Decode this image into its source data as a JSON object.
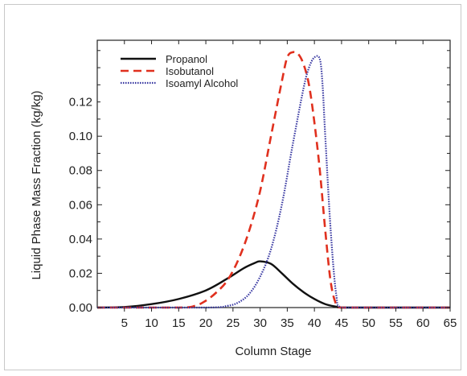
{
  "chart_data": {
    "type": "line",
    "xlabel": "Column Stage",
    "ylabel": "Liquid Phase Mass Fraction (kg/kg)",
    "xlim": [
      0,
      65
    ],
    "ylim": [
      0,
      0.156
    ],
    "xticks": [
      5,
      10,
      15,
      20,
      25,
      30,
      35,
      40,
      45,
      50,
      55,
      60,
      65
    ],
    "xtick_labels": [
      "5",
      "10",
      "15",
      "20",
      "25",
      "30",
      "35",
      "40",
      "45",
      "50",
      "55",
      "60",
      "65"
    ],
    "yticks": [
      0.0,
      0.02,
      0.04,
      0.06,
      0.08,
      0.1,
      0.12
    ],
    "ytick_labels": [
      "0.00",
      "0.02",
      "0.04",
      "0.06",
      "0.08",
      "0.10",
      "0.12"
    ],
    "legend_position": "top-left",
    "grid": false,
    "series": [
      {
        "name": "Propanol",
        "color": "#111111",
        "style": "solid",
        "x": [
          0,
          5,
          10,
          15,
          20,
          24,
          27,
          29,
          30,
          32,
          34,
          36,
          38,
          40,
          42,
          44,
          45,
          50,
          55,
          60,
          65
        ],
        "y": [
          0.0,
          0.0003,
          0.002,
          0.005,
          0.01,
          0.017,
          0.023,
          0.026,
          0.027,
          0.0255,
          0.02,
          0.014,
          0.009,
          0.005,
          0.002,
          0.0005,
          0.0,
          0.0,
          0.0,
          0.0,
          0.0
        ]
      },
      {
        "name": "Isobutanol",
        "color": "#e0301e",
        "style": "dashed",
        "x": [
          0,
          15,
          18,
          20,
          22,
          24,
          26,
          28,
          30,
          32,
          34,
          35,
          36,
          37,
          38,
          39,
          40,
          41,
          42,
          43,
          44,
          45,
          50,
          55,
          60,
          65
        ],
        "y": [
          0.0,
          0.0,
          0.001,
          0.004,
          0.009,
          0.016,
          0.028,
          0.045,
          0.068,
          0.1,
          0.132,
          0.146,
          0.149,
          0.148,
          0.142,
          0.13,
          0.108,
          0.08,
          0.045,
          0.015,
          0.002,
          0.0,
          0.0,
          0.0,
          0.0,
          0.0
        ]
      },
      {
        "name": "Isoamyl Alcohol",
        "color": "#3535a0",
        "style": "dotted",
        "x": [
          0,
          20,
          24,
          26,
          28,
          30,
          32,
          34,
          36,
          38,
          39,
          40,
          41,
          41.5,
          42,
          43,
          44,
          45,
          50,
          55,
          60,
          65
        ],
        "y": [
          0.0,
          0.0,
          0.001,
          0.003,
          0.008,
          0.018,
          0.034,
          0.06,
          0.095,
          0.128,
          0.14,
          0.146,
          0.145,
          0.13,
          0.1,
          0.045,
          0.008,
          0.0,
          0.0,
          0.0,
          0.0,
          0.0
        ]
      }
    ]
  }
}
